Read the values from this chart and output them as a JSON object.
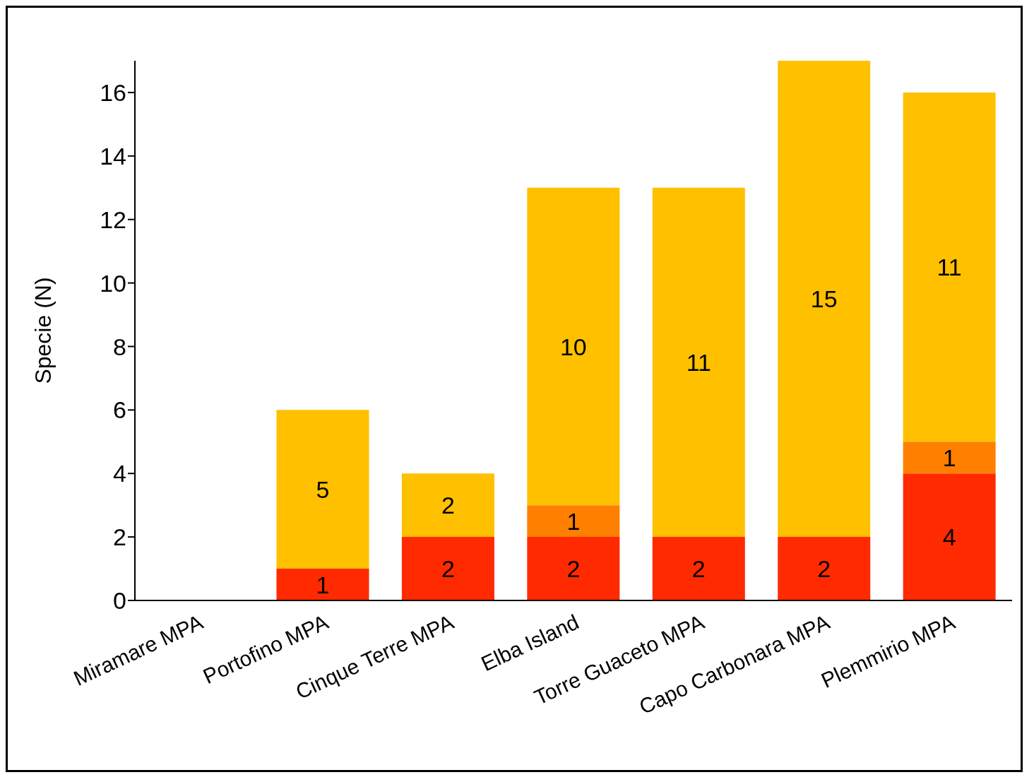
{
  "chart_data": {
    "type": "bar",
    "stacked": true,
    "ylabel": "Specie (N)",
    "categories": [
      "Miramare MPA",
      "Portofino MPA",
      "Cinque Terre MPA",
      "Elba Island",
      "Torre Guaceto MPA",
      "Capo Carbonara MPA",
      "Plemmirio MPA"
    ],
    "series": [
      {
        "color": "#ff2a00",
        "values": [
          null,
          1,
          2,
          2,
          2,
          2,
          4
        ]
      },
      {
        "color": "#ff7f00",
        "values": [
          null,
          null,
          null,
          1,
          null,
          null,
          1
        ]
      },
      {
        "color": "#ffc000",
        "values": [
          null,
          5,
          2,
          10,
          11,
          15,
          11
        ]
      }
    ],
    "ylim": [
      0,
      17
    ],
    "yticks": [
      0,
      2,
      4,
      6,
      8,
      10,
      12,
      14,
      16
    ],
    "data_labels": true,
    "grid": false,
    "legend": false
  }
}
